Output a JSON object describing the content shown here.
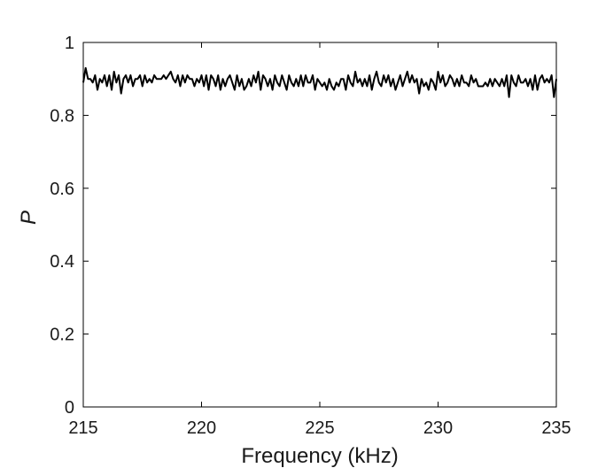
{
  "chart_data": {
    "type": "line",
    "title": "",
    "xlabel": "Frequency (kHz)",
    "ylabel": "P",
    "xlim": [
      215,
      235
    ],
    "ylim": [
      0,
      1
    ],
    "xticks": [
      215,
      220,
      225,
      230,
      235
    ],
    "xtick_labels": [
      "215",
      "220",
      "225",
      "230",
      "235"
    ],
    "yticks": [
      0,
      0.2,
      0.4,
      0.6,
      0.8,
      1
    ],
    "ytick_labels": [
      "0",
      "0.2",
      "0.4",
      "0.6",
      "0.8",
      "1"
    ],
    "grid": false,
    "legend": "none",
    "colors": {
      "line": "#000000",
      "axes": "#000000"
    },
    "series": [
      {
        "x": [
          215.0,
          215.1,
          215.2,
          215.3,
          215.4,
          215.5,
          215.6,
          215.7,
          215.8,
          215.9,
          216.0,
          216.1,
          216.2,
          216.3,
          216.4,
          216.5,
          216.6,
          216.7,
          216.8,
          216.9,
          217.0,
          217.1,
          217.2,
          217.3,
          217.4,
          217.5,
          217.6,
          217.7,
          217.8,
          217.9,
          218.0,
          218.1,
          218.2,
          218.3,
          218.4,
          218.5,
          218.6,
          218.7,
          218.8,
          218.9,
          219.0,
          219.1,
          219.2,
          219.3,
          219.4,
          219.5,
          219.6,
          219.7,
          219.8,
          219.9,
          220.0,
          220.1,
          220.2,
          220.3,
          220.4,
          220.5,
          220.6,
          220.7,
          220.8,
          220.9,
          221.0,
          221.1,
          221.2,
          221.3,
          221.4,
          221.5,
          221.6,
          221.7,
          221.8,
          221.9,
          222.0,
          222.1,
          222.2,
          222.3,
          222.4,
          222.5,
          222.6,
          222.7,
          222.8,
          222.9,
          223.0,
          223.1,
          223.2,
          223.3,
          223.4,
          223.5,
          223.6,
          223.7,
          223.8,
          223.9,
          224.0,
          224.1,
          224.2,
          224.3,
          224.4,
          224.5,
          224.6,
          224.7,
          224.8,
          224.9,
          225.0,
          225.1,
          225.2,
          225.3,
          225.4,
          225.5,
          225.6,
          225.7,
          225.8,
          225.9,
          226.0,
          226.1,
          226.2,
          226.3,
          226.4,
          226.5,
          226.6,
          226.7,
          226.8,
          226.9,
          227.0,
          227.1,
          227.2,
          227.3,
          227.4,
          227.5,
          227.6,
          227.7,
          227.8,
          227.9,
          228.0,
          228.1,
          228.2,
          228.3,
          228.4,
          228.5,
          228.6,
          228.7,
          228.8,
          228.9,
          229.0,
          229.1,
          229.2,
          229.3,
          229.4,
          229.5,
          229.6,
          229.7,
          229.8,
          229.9,
          230.0,
          230.1,
          230.2,
          230.3,
          230.4,
          230.5,
          230.6,
          230.7,
          230.8,
          230.9,
          231.0,
          231.1,
          231.2,
          231.3,
          231.4,
          231.5,
          231.6,
          231.7,
          231.8,
          231.9,
          232.0,
          232.1,
          232.2,
          232.3,
          232.4,
          232.5,
          232.6,
          232.7,
          232.8,
          232.9,
          233.0,
          233.1,
          233.2,
          233.3,
          233.4,
          233.5,
          233.6,
          233.7,
          233.8,
          233.9,
          234.0,
          234.1,
          234.2,
          234.3,
          234.4,
          234.5,
          234.6,
          234.7,
          234.8,
          234.9,
          235.0
        ],
        "y": [
          0.89,
          0.93,
          0.9,
          0.9,
          0.89,
          0.91,
          0.87,
          0.9,
          0.89,
          0.91,
          0.88,
          0.91,
          0.87,
          0.92,
          0.89,
          0.91,
          0.86,
          0.9,
          0.91,
          0.89,
          0.91,
          0.88,
          0.9,
          0.9,
          0.91,
          0.88,
          0.91,
          0.89,
          0.9,
          0.89,
          0.91,
          0.9,
          0.9,
          0.9,
          0.91,
          0.9,
          0.91,
          0.92,
          0.9,
          0.89,
          0.91,
          0.88,
          0.91,
          0.89,
          0.91,
          0.9,
          0.9,
          0.88,
          0.9,
          0.89,
          0.91,
          0.88,
          0.91,
          0.87,
          0.91,
          0.9,
          0.88,
          0.91,
          0.87,
          0.9,
          0.88,
          0.9,
          0.91,
          0.89,
          0.87,
          0.91,
          0.88,
          0.9,
          0.87,
          0.88,
          0.9,
          0.88,
          0.91,
          0.89,
          0.92,
          0.87,
          0.91,
          0.9,
          0.88,
          0.9,
          0.87,
          0.91,
          0.89,
          0.88,
          0.91,
          0.89,
          0.87,
          0.91,
          0.89,
          0.88,
          0.9,
          0.88,
          0.91,
          0.88,
          0.91,
          0.89,
          0.89,
          0.91,
          0.87,
          0.9,
          0.89,
          0.88,
          0.89,
          0.87,
          0.9,
          0.88,
          0.87,
          0.89,
          0.88,
          0.9,
          0.9,
          0.87,
          0.91,
          0.89,
          0.88,
          0.92,
          0.89,
          0.9,
          0.88,
          0.9,
          0.88,
          0.91,
          0.87,
          0.9,
          0.92,
          0.89,
          0.88,
          0.91,
          0.89,
          0.91,
          0.88,
          0.9,
          0.87,
          0.89,
          0.91,
          0.88,
          0.9,
          0.92,
          0.89,
          0.91,
          0.89,
          0.9,
          0.86,
          0.9,
          0.88,
          0.89,
          0.87,
          0.9,
          0.89,
          0.87,
          0.92,
          0.89,
          0.91,
          0.88,
          0.89,
          0.91,
          0.9,
          0.88,
          0.9,
          0.88,
          0.91,
          0.89,
          0.89,
          0.88,
          0.91,
          0.89,
          0.9,
          0.88,
          0.88,
          0.88,
          0.89,
          0.88,
          0.9,
          0.88,
          0.9,
          0.89,
          0.88,
          0.9,
          0.88,
          0.91,
          0.85,
          0.91,
          0.89,
          0.88,
          0.91,
          0.89,
          0.89,
          0.9,
          0.88,
          0.9,
          0.87,
          0.91,
          0.87,
          0.9,
          0.91,
          0.89,
          0.9,
          0.89,
          0.91,
          0.85,
          0.9
        ]
      }
    ]
  }
}
